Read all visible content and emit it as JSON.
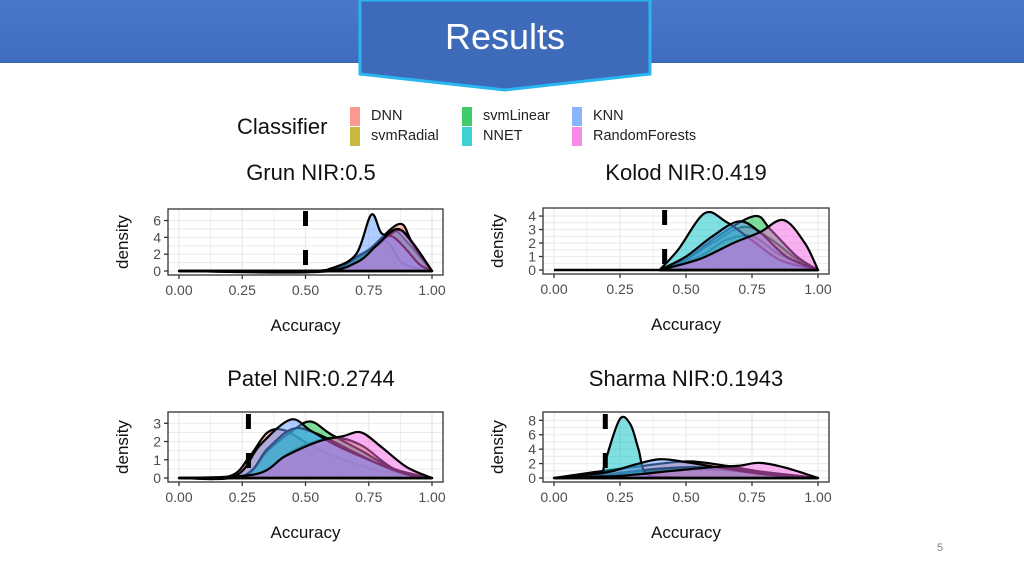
{
  "header": {
    "title": "Results",
    "color": "#4472C4"
  },
  "page_number": "5",
  "legend": {
    "title": "Classifier",
    "items": [
      {
        "label": "DNN",
        "color": "#F8766D"
      },
      {
        "label": "svmRadial",
        "color": "#B79F00"
      },
      {
        "label": "svmLinear",
        "color": "#00BA38"
      },
      {
        "label": "NNET",
        "color": "#00BFC4"
      },
      {
        "label": "KNN",
        "color": "#619CFF"
      },
      {
        "label": "RandomForests",
        "color": "#F564E3"
      }
    ]
  },
  "chart_data": [
    {
      "type": "area",
      "title": "Grun NIR:0.5",
      "xlabel": "Accuracy",
      "ylabel": "density",
      "nir": 0.5,
      "xlim": [
        0,
        1
      ],
      "ylim": [
        0,
        6.9
      ],
      "xticks": [
        "0.00",
        "0.25",
        "0.50",
        "0.75",
        "1.00"
      ],
      "yticks": [
        "0",
        "2",
        "4",
        "6"
      ],
      "grid": true,
      "series": [
        {
          "name": "DNN",
          "points": [
            [
              0,
              0
            ],
            [
              0.5,
              0
            ],
            [
              0.65,
              0.5
            ],
            [
              0.75,
              2.5
            ],
            [
              0.87,
              5.6
            ],
            [
              0.92,
              3.5
            ],
            [
              1,
              0
            ]
          ]
        },
        {
          "name": "svmRadial",
          "points": [
            [
              0,
              0
            ],
            [
              0.6,
              0
            ],
            [
              0.75,
              2.5
            ],
            [
              0.82,
              3.5
            ],
            [
              0.88,
              1
            ],
            [
              0.95,
              0.3
            ],
            [
              1,
              0
            ]
          ]
        },
        {
          "name": "svmLinear",
          "points": [
            [
              0,
              0
            ],
            [
              0.55,
              0
            ],
            [
              0.7,
              1.5
            ],
            [
              0.8,
              3.5
            ],
            [
              0.85,
              4.8
            ],
            [
              0.9,
              3.5
            ],
            [
              1,
              0
            ]
          ]
        },
        {
          "name": "NNET",
          "points": [
            [
              0,
              0
            ],
            [
              0.55,
              0
            ],
            [
              0.72,
              2
            ],
            [
              0.82,
              4
            ],
            [
              0.88,
              4.8
            ],
            [
              0.95,
              2
            ],
            [
              1,
              0
            ]
          ]
        },
        {
          "name": "KNN",
          "points": [
            [
              0,
              0
            ],
            [
              0.5,
              0
            ],
            [
              0.6,
              0.3
            ],
            [
              0.7,
              2
            ],
            [
              0.76,
              6.7
            ],
            [
              0.8,
              4.5
            ],
            [
              0.85,
              4
            ],
            [
              0.9,
              2.5
            ],
            [
              0.95,
              0.8
            ],
            [
              1,
              0
            ]
          ]
        },
        {
          "name": "RandomForests",
          "points": [
            [
              0,
              0
            ],
            [
              0.55,
              0
            ],
            [
              0.7,
              1
            ],
            [
              0.78,
              3
            ],
            [
              0.86,
              5
            ],
            [
              0.92,
              3.5
            ],
            [
              1,
              0
            ]
          ]
        }
      ]
    },
    {
      "type": "area",
      "title": "Kolod NIR:0.419",
      "xlabel": "Accuracy",
      "ylabel": "density",
      "nir": 0.419,
      "xlim": [
        0,
        1
      ],
      "ylim": [
        0,
        4.3
      ],
      "xticks": [
        "0.00",
        "0.25",
        "0.50",
        "0.75",
        "1.00"
      ],
      "yticks": [
        "0",
        "1",
        "2",
        "3",
        "4"
      ],
      "grid": true,
      "series": [
        {
          "name": "DNN",
          "points": [
            [
              0.4,
              0
            ],
            [
              0.5,
              0.8
            ],
            [
              0.6,
              2
            ],
            [
              0.72,
              3.2
            ],
            [
              0.82,
              2.3
            ],
            [
              0.92,
              0.8
            ],
            [
              1,
              0
            ]
          ]
        },
        {
          "name": "svmRadial",
          "points": [
            [
              0.4,
              0
            ],
            [
              0.55,
              1
            ],
            [
              0.65,
              2.2
            ],
            [
              0.75,
              2.5
            ],
            [
              0.85,
              1.2
            ],
            [
              0.95,
              0.3
            ],
            [
              1,
              0
            ]
          ]
        },
        {
          "name": "svmLinear",
          "points": [
            [
              0.4,
              0
            ],
            [
              0.5,
              0.8
            ],
            [
              0.62,
              2.5
            ],
            [
              0.76,
              4
            ],
            [
              0.82,
              3
            ],
            [
              0.92,
              1
            ],
            [
              1,
              0
            ]
          ]
        },
        {
          "name": "NNET",
          "points": [
            [
              0.4,
              0
            ],
            [
              0.47,
              1.5
            ],
            [
              0.57,
              4.2
            ],
            [
              0.65,
              3.6
            ],
            [
              0.75,
              2.2
            ],
            [
              0.85,
              0.8
            ],
            [
              0.95,
              0.2
            ],
            [
              1,
              0
            ]
          ]
        },
        {
          "name": "KNN",
          "points": [
            [
              0.4,
              0
            ],
            [
              0.5,
              1
            ],
            [
              0.6,
              2.5
            ],
            [
              0.7,
              3.6
            ],
            [
              0.78,
              2.8
            ],
            [
              0.88,
              1
            ],
            [
              1,
              0
            ]
          ]
        },
        {
          "name": "RandomForests",
          "points": [
            [
              0.4,
              0
            ],
            [
              0.55,
              0.8
            ],
            [
              0.68,
              2
            ],
            [
              0.78,
              2.8
            ],
            [
              0.87,
              3.7
            ],
            [
              0.95,
              2
            ],
            [
              1,
              0
            ]
          ]
        }
      ]
    },
    {
      "type": "area",
      "title": "Patel NIR:0.2744",
      "xlabel": "Accuracy",
      "ylabel": "density",
      "nir": 0.2744,
      "xlim": [
        0,
        1
      ],
      "ylim": [
        0,
        3.4
      ],
      "xticks": [
        "0.00",
        "0.25",
        "0.50",
        "0.75",
        "1.00"
      ],
      "yticks": [
        "0",
        "1",
        "2",
        "3"
      ],
      "grid": true,
      "series": [
        {
          "name": "DNN",
          "points": [
            [
              0,
              0
            ],
            [
              0.2,
              0.1
            ],
            [
              0.28,
              1.2
            ],
            [
              0.35,
              2.5
            ],
            [
              0.42,
              2.6
            ],
            [
              0.52,
              1.8
            ],
            [
              0.65,
              1
            ],
            [
              0.8,
              0.4
            ],
            [
              1,
              0
            ]
          ]
        },
        {
          "name": "svmRadial",
          "points": [
            [
              0,
              0
            ],
            [
              0.3,
              0.2
            ],
            [
              0.45,
              1.5
            ],
            [
              0.6,
              2.2
            ],
            [
              0.72,
              1.8
            ],
            [
              0.85,
              0.5
            ],
            [
              1,
              0
            ]
          ]
        },
        {
          "name": "svmLinear",
          "points": [
            [
              0,
              0
            ],
            [
              0.25,
              0.1
            ],
            [
              0.35,
              1.5
            ],
            [
              0.45,
              2.6
            ],
            [
              0.52,
              3.1
            ],
            [
              0.6,
              2.4
            ],
            [
              0.72,
              1.5
            ],
            [
              0.85,
              0.5
            ],
            [
              1,
              0
            ]
          ]
        },
        {
          "name": "NNET",
          "points": [
            [
              0,
              0
            ],
            [
              0.25,
              0.1
            ],
            [
              0.35,
              1.6
            ],
            [
              0.45,
              2.7
            ],
            [
              0.55,
              2.4
            ],
            [
              0.68,
              1.5
            ],
            [
              0.85,
              0.4
            ],
            [
              1,
              0
            ]
          ]
        },
        {
          "name": "KNN",
          "points": [
            [
              0,
              0
            ],
            [
              0.22,
              0.1
            ],
            [
              0.32,
              1.8
            ],
            [
              0.44,
              3.2
            ],
            [
              0.52,
              2.6
            ],
            [
              0.62,
              1.8
            ],
            [
              0.75,
              1
            ],
            [
              0.9,
              0.2
            ],
            [
              1,
              0
            ]
          ]
        },
        {
          "name": "RandomForests",
          "points": [
            [
              0,
              0
            ],
            [
              0.3,
              0.2
            ],
            [
              0.42,
              1.2
            ],
            [
              0.55,
              2
            ],
            [
              0.65,
              2.3
            ],
            [
              0.72,
              2.5
            ],
            [
              0.8,
              1.7
            ],
            [
              0.9,
              0.6
            ],
            [
              1,
              0
            ]
          ]
        }
      ]
    },
    {
      "type": "area",
      "title": "Sharma NIR:0.1943",
      "xlabel": "Accuracy",
      "ylabel": "density",
      "nir": 0.1943,
      "xlim": [
        0,
        1
      ],
      "ylim": [
        0,
        8.6
      ],
      "xticks": [
        "0.00",
        "0.25",
        "0.50",
        "0.75",
        "1.00"
      ],
      "yticks": [
        "0",
        "2",
        "4",
        "6",
        "8"
      ],
      "grid": true,
      "series": [
        {
          "name": "DNN",
          "points": [
            [
              0,
              0
            ],
            [
              0.15,
              0.8
            ],
            [
              0.3,
              1.5
            ],
            [
              0.5,
              2.3
            ],
            [
              0.65,
              1.7
            ],
            [
              0.8,
              0.8
            ],
            [
              1,
              0
            ]
          ]
        },
        {
          "name": "svmRadial",
          "points": [
            [
              0,
              0
            ],
            [
              0.2,
              0.4
            ],
            [
              0.4,
              1
            ],
            [
              0.6,
              1.2
            ],
            [
              0.8,
              0.6
            ],
            [
              1,
              0
            ]
          ]
        },
        {
          "name": "svmLinear",
          "points": [
            [
              0,
              0
            ],
            [
              0.2,
              0.5
            ],
            [
              0.4,
              1.3
            ],
            [
              0.6,
              1.5
            ],
            [
              0.8,
              0.8
            ],
            [
              1,
              0
            ]
          ]
        },
        {
          "name": "NNET",
          "points": [
            [
              0.18,
              0
            ],
            [
              0.2,
              3
            ],
            [
              0.25,
              8.2
            ],
            [
              0.29,
              7.4
            ],
            [
              0.32,
              4
            ],
            [
              0.35,
              0.6
            ],
            [
              0.45,
              0.1
            ],
            [
              0.6,
              0
            ]
          ]
        },
        {
          "name": "KNN",
          "points": [
            [
              0,
              0
            ],
            [
              0.2,
              0.8
            ],
            [
              0.3,
              1.8
            ],
            [
              0.4,
              2.6
            ],
            [
              0.5,
              2.2
            ],
            [
              0.65,
              1.3
            ],
            [
              0.8,
              0.5
            ],
            [
              1,
              0
            ]
          ]
        },
        {
          "name": "RandomForests",
          "points": [
            [
              0,
              0
            ],
            [
              0.25,
              0.3
            ],
            [
              0.45,
              1
            ],
            [
              0.6,
              1.5
            ],
            [
              0.7,
              1.7
            ],
            [
              0.78,
              2.1
            ],
            [
              0.88,
              1.4
            ],
            [
              1,
              0
            ]
          ]
        }
      ]
    }
  ]
}
